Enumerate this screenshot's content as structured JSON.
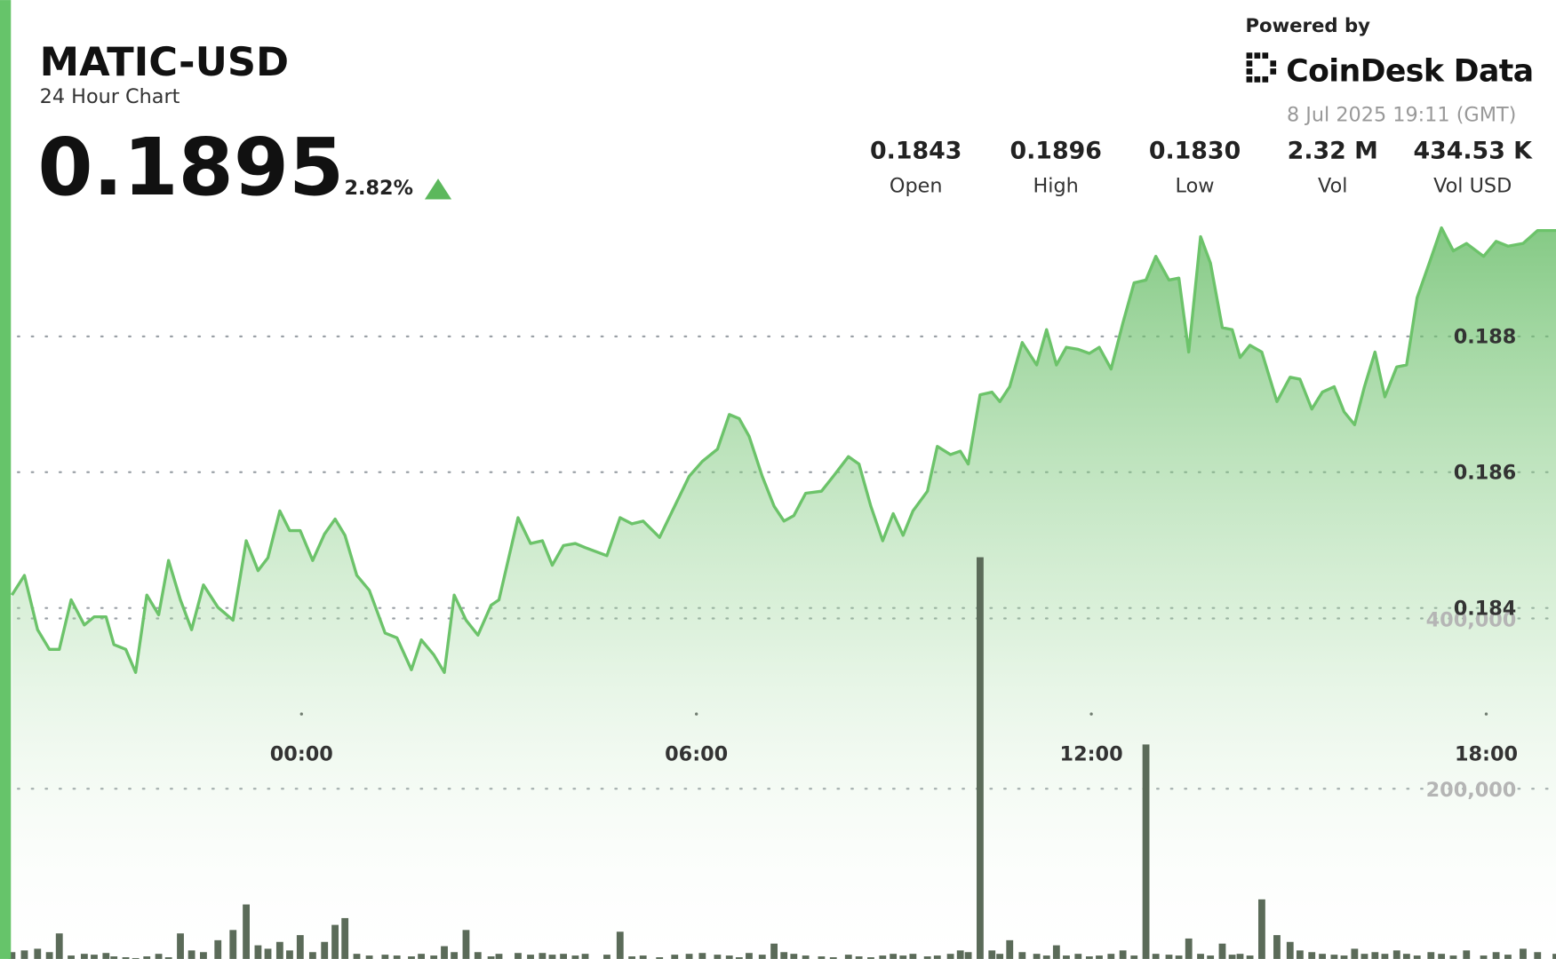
{
  "chart_data": {
    "type": "area",
    "title": "MATIC-USD",
    "subtitle": "24 Hour Chart",
    "price": 0.1895,
    "change": {
      "value": 2.82,
      "label": "2.82%"
    },
    "source": "Powered by",
    "brand": "CoinDesk Data",
    "timestamp": "8 Jul 2025 19:11 (GMT)",
    "stats": [
      {
        "label": "Open",
        "value": 0.1843
      },
      {
        "label": "High",
        "value": 0.1896
      },
      {
        "label": "Low",
        "value": 0.183,
        "value_label": "0.1830"
      },
      {
        "label": "Vol",
        "value": 2320000,
        "value_label": "2.32 M"
      },
      {
        "label": "Vol USD",
        "value": 434530,
        "value_label": "434.53 K"
      }
    ],
    "x": [
      -4.4,
      -4.21,
      -4.01,
      -3.83,
      -3.68,
      -3.5,
      -3.3,
      -3.15,
      -2.97,
      -2.85,
      -2.67,
      -2.52,
      -2.35,
      -2.17,
      -2.02,
      -1.84,
      -1.67,
      -1.49,
      -1.27,
      -1.04,
      -0.84,
      -0.66,
      -0.51,
      -0.33,
      -0.18,
      -0.02,
      0.17,
      0.35,
      0.51,
      0.66,
      0.84,
      1.03,
      1.27,
      1.45,
      1.67,
      1.82,
      2.01,
      2.17,
      2.32,
      2.5,
      2.68,
      2.88,
      3,
      3.29,
      3.48,
      3.66,
      3.81,
      3.98,
      4.16,
      4.31,
      4.64,
      4.84,
      5.02,
      5.19,
      5.44,
      5.67,
      5.89,
      6.09,
      6.32,
      6.5,
      6.65,
      6.8,
      7,
      7.18,
      7.33,
      7.48,
      7.66,
      7.9,
      8.08,
      8.31,
      8.47,
      8.65,
      8.83,
      8.99,
      9.14,
      9.29,
      9.51,
      9.66,
      9.86,
      10.01,
      10.13,
      10.31,
      10.49,
      10.61,
      10.76,
      10.95,
      11.17,
      11.32,
      11.47,
      11.62,
      11.8,
      11.97,
      12.12,
      12.3,
      12.48,
      12.65,
      12.83,
      12.98,
      13.18,
      13.33,
      13.48,
      13.66,
      13.81,
      13.99,
      14.14,
      14.26,
      14.41,
      14.59,
      14.82,
      15.02,
      15.17,
      15.35,
      15.51,
      15.69,
      15.84,
      16,
      16.15,
      16.31,
      16.46,
      16.64,
      16.79,
      16.95,
      17.16,
      17.32,
      17.5,
      17.7,
      17.96,
      18.15,
      18.33,
      18.56,
      18.78,
      19.06
    ],
    "series": [
      {
        "color": "#6cc36a",
        "values": [
          0.18419,
          0.18448,
          0.18368,
          0.18339,
          0.18339,
          0.18412,
          0.18375,
          0.18387,
          0.18387,
          0.18346,
          0.18339,
          0.18305,
          0.18419,
          0.1839,
          0.1847,
          0.18412,
          0.18368,
          0.18434,
          0.18401,
          0.18382,
          0.18499,
          0.18455,
          0.18474,
          0.18543,
          0.18514,
          0.18514,
          0.1847,
          0.18509,
          0.18531,
          0.18507,
          0.18448,
          0.18426,
          0.18363,
          0.18356,
          0.18309,
          0.18353,
          0.18331,
          0.18305,
          0.18419,
          0.18382,
          0.1836,
          0.18404,
          0.18412,
          0.18533,
          0.18495,
          0.18499,
          0.18463,
          0.18492,
          0.18495,
          0.18489,
          0.18477,
          0.18533,
          0.18524,
          0.18528,
          0.18504,
          0.1855,
          0.18594,
          0.18616,
          0.18634,
          0.18685,
          0.18679,
          0.18653,
          0.18594,
          0.1855,
          0.18528,
          0.18536,
          0.18569,
          0.18572,
          0.18594,
          0.18623,
          0.18612,
          0.1855,
          0.18499,
          0.18539,
          0.18507,
          0.18543,
          0.18572,
          0.18638,
          0.18626,
          0.18631,
          0.18612,
          0.18714,
          0.18718,
          0.18704,
          0.18726,
          0.18791,
          0.18758,
          0.1881,
          0.18758,
          0.18784,
          0.18781,
          0.18775,
          0.18784,
          0.18752,
          0.1882,
          0.18879,
          0.18883,
          0.18918,
          0.18883,
          0.18886,
          0.18777,
          0.18947,
          0.18908,
          0.18813,
          0.1881,
          0.18769,
          0.18787,
          0.18777,
          0.18704,
          0.1874,
          0.18737,
          0.18693,
          0.18718,
          0.18726,
          0.18689,
          0.1867,
          0.18726,
          0.18777,
          0.18711,
          0.18755,
          0.18758,
          0.18857,
          0.18915,
          0.1896,
          0.18926,
          0.18937,
          0.18918,
          0.1894,
          0.18933,
          0.18937,
          0.18956,
          0.18956
        ]
      },
      {
        "type": "bar",
        "axis": "y2",
        "color": "#5b6b59",
        "values": [
          8000,
          10000,
          12000,
          8000,
          30000,
          4000,
          6000,
          5000,
          7000,
          3000,
          2000,
          1000,
          3000,
          6000,
          2000,
          30000,
          10000,
          8000,
          22000,
          34000,
          64000,
          16000,
          12000,
          20000,
          10000,
          28000,
          8000,
          20000,
          40000,
          48000,
          6000,
          4000,
          5000,
          4000,
          3000,
          6000,
          4000,
          15000,
          8000,
          34000,
          8000,
          3000,
          6000,
          7000,
          5000,
          7000,
          5000,
          6000,
          4000,
          6000,
          5000,
          32000,
          3000,
          4000,
          2000,
          5000,
          6000,
          7000,
          5000,
          4000,
          2000,
          7000,
          5000,
          18000,
          8000,
          6000,
          4000,
          3000,
          2000,
          5000,
          3000,
          2000,
          4000,
          6000,
          4000,
          6000,
          3000,
          4000,
          6000,
          10000,
          8000,
          472000,
          10000,
          6000,
          22000,
          8000,
          6000,
          4000,
          16000,
          4000,
          6000,
          3000,
          4000,
          6000,
          10000,
          4000,
          252000,
          6000,
          5000,
          4000,
          24000,
          6000,
          4000,
          18000,
          5000,
          6000,
          4000,
          70000,
          28000,
          20000,
          10000,
          8000,
          6000,
          5000,
          4000,
          12000,
          6000,
          8000,
          6000,
          10000,
          6000,
          4000,
          8000,
          6000,
          4000,
          10000,
          4000,
          8000,
          5000,
          12000,
          8000,
          6000
        ]
      }
    ],
    "xlim": [
      -4.4,
      19.06
    ],
    "xticks": [
      {
        "value": 0,
        "label": "00:00"
      },
      {
        "value": 6,
        "label": "06:00"
      },
      {
        "value": 12,
        "label": "12:00"
      },
      {
        "value": 18,
        "label": "18:00"
      }
    ],
    "ylim": [
      0.17883,
      0.1898
    ],
    "yticks": [
      0.184,
      0.186,
      0.188
    ],
    "y2lim": [
      0,
      875000
    ],
    "y2ticks": [
      {
        "value": 200000,
        "label": "200,000"
      },
      {
        "value": 400000,
        "label": "400,000"
      }
    ],
    "grid": true
  }
}
